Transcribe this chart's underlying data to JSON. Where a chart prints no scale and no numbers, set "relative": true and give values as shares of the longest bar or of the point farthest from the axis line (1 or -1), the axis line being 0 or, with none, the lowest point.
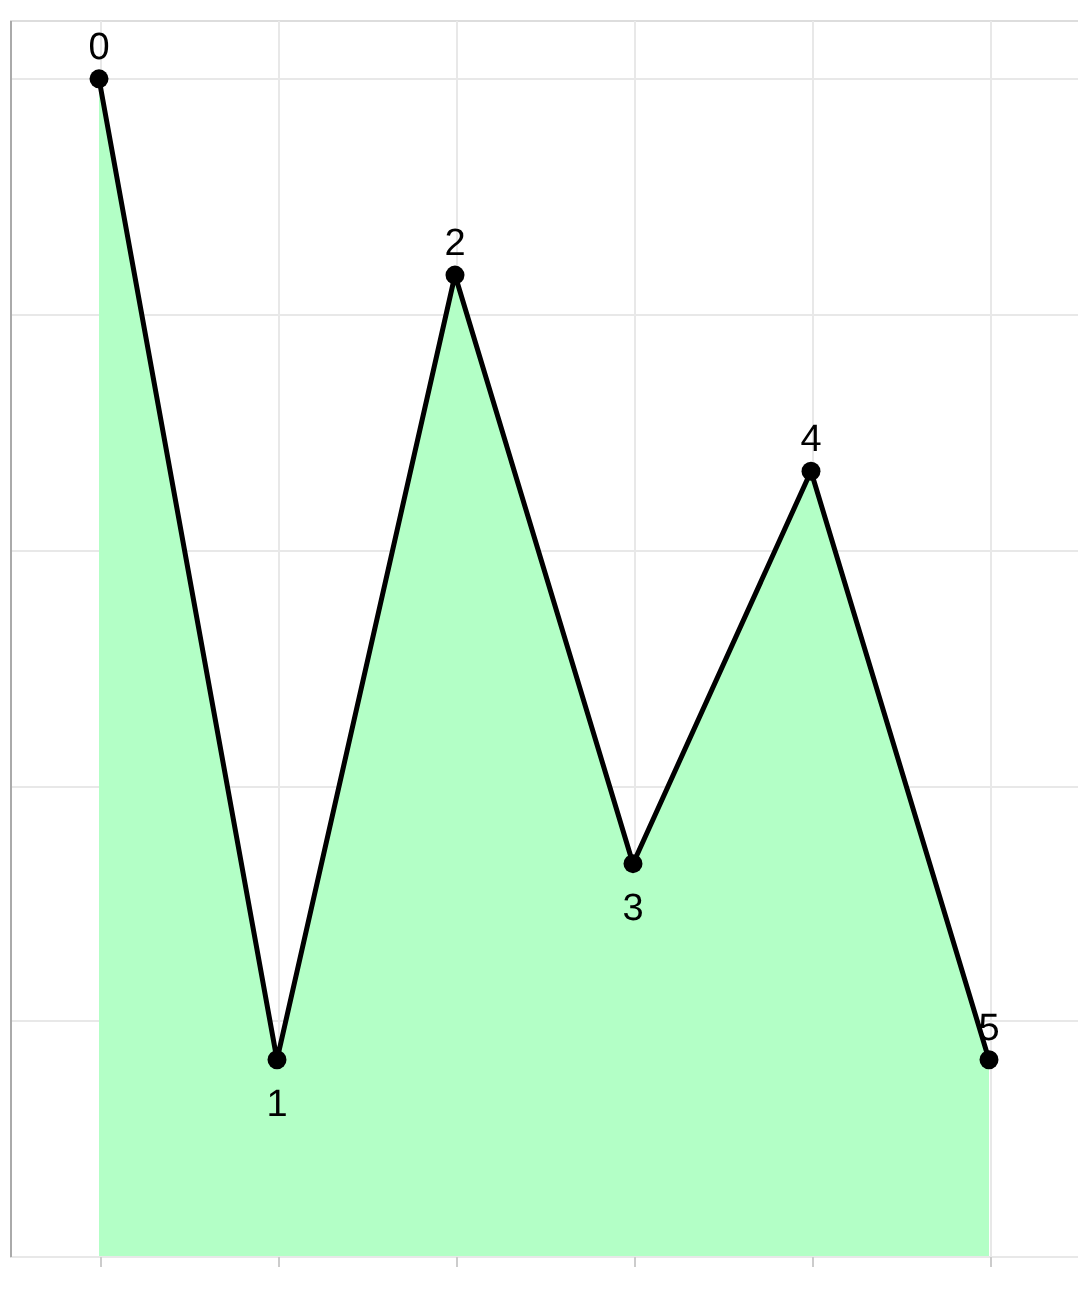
{
  "chart_data": {
    "type": "area",
    "relative": true,
    "categories": [
      null,
      null,
      null,
      null,
      null,
      null
    ],
    "series": [
      {
        "color": "#b3ffc6",
        "values": [
          1,
          0.1667,
          0.8333,
          0.3333,
          0.6667,
          0.1667
        ]
      }
    ],
    "value_labels": [
      "0",
      "1",
      "2",
      "3",
      "4",
      "5"
    ],
    "marker": "circle",
    "grid": true,
    "tick_labels": false
  }
}
